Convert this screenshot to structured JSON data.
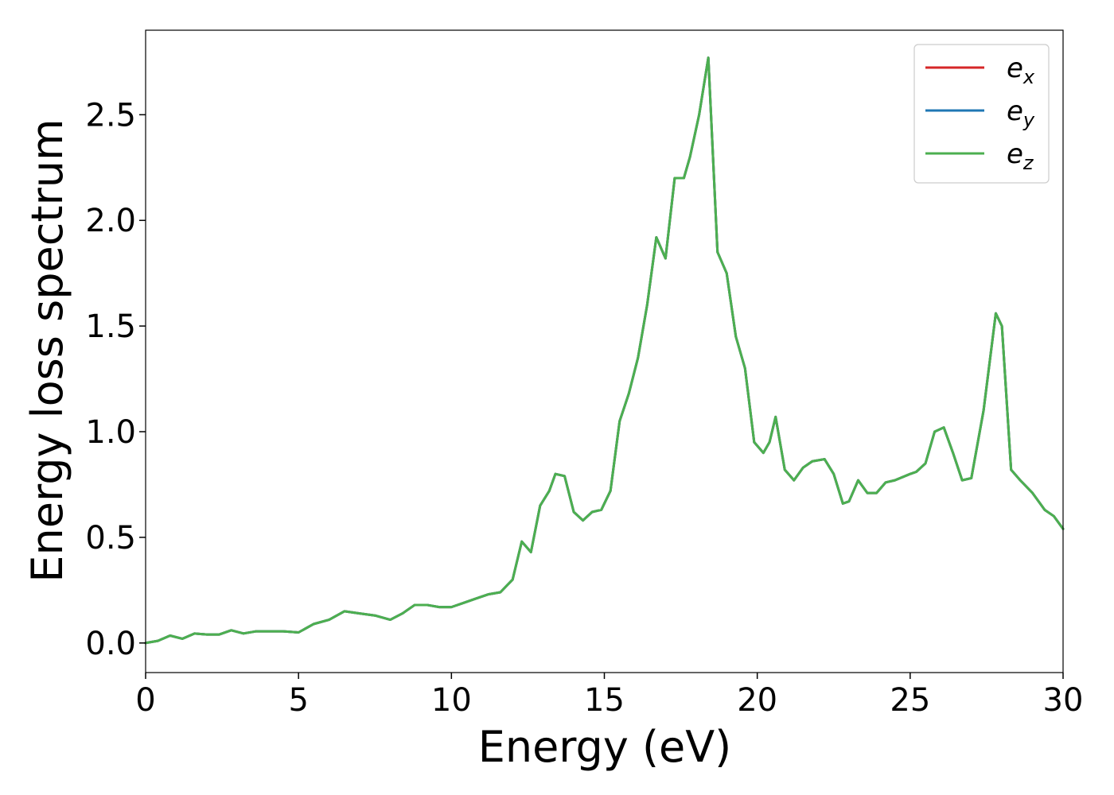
{
  "chart_data": {
    "type": "line",
    "xlabel": "Energy (eV)",
    "ylabel": "Energy loss spectrum",
    "xlim": [
      0,
      30
    ],
    "ylim": [
      -0.14,
      2.9
    ],
    "xticks": [
      0,
      5,
      10,
      15,
      20,
      25,
      30
    ],
    "xtick_labels": [
      "0",
      "5",
      "10",
      "15",
      "20",
      "25",
      "30"
    ],
    "yticks": [
      0.0,
      0.5,
      1.0,
      1.5,
      2.0,
      2.5
    ],
    "ytick_labels": [
      "0.0",
      "0.5",
      "1.0",
      "1.5",
      "2.0",
      "2.5"
    ],
    "grid": false,
    "legend_position": "top-right",
    "x": [
      0,
      0.4,
      0.8,
      1.2,
      1.6,
      2.0,
      2.4,
      2.8,
      3.2,
      3.6,
      4.0,
      4.5,
      5.0,
      5.5,
      6.0,
      6.5,
      7.0,
      7.5,
      8.0,
      8.4,
      8.8,
      9.2,
      9.6,
      10.0,
      10.4,
      10.8,
      11.2,
      11.6,
      12.0,
      12.3,
      12.6,
      12.9,
      13.2,
      13.4,
      13.7,
      14.0,
      14.3,
      14.6,
      14.9,
      15.2,
      15.5,
      15.8,
      16.1,
      16.4,
      16.7,
      17.0,
      17.3,
      17.6,
      17.8,
      18.1,
      18.4,
      18.7,
      19.0,
      19.3,
      19.6,
      19.9,
      20.2,
      20.4,
      20.6,
      20.9,
      21.2,
      21.5,
      21.8,
      22.2,
      22.5,
      22.8,
      23.0,
      23.3,
      23.6,
      23.9,
      24.2,
      24.5,
      25.0,
      25.2,
      25.5,
      25.8,
      26.1,
      26.4,
      26.7,
      27.0,
      27.4,
      27.8,
      28.0,
      28.3,
      28.6,
      29.0,
      29.4,
      29.7,
      30.0
    ],
    "series": [
      {
        "name": "e_x",
        "color": "#d62728",
        "y": [
          0.0,
          0.01,
          0.035,
          0.02,
          0.045,
          0.04,
          0.04,
          0.06,
          0.045,
          0.055,
          0.055,
          0.055,
          0.05,
          0.09,
          0.11,
          0.15,
          0.14,
          0.13,
          0.11,
          0.14,
          0.18,
          0.18,
          0.17,
          0.17,
          0.19,
          0.21,
          0.23,
          0.24,
          0.3,
          0.48,
          0.43,
          0.65,
          0.72,
          0.8,
          0.79,
          0.62,
          0.58,
          0.62,
          0.63,
          0.72,
          1.05,
          1.18,
          1.35,
          1.6,
          1.92,
          1.82,
          2.2,
          2.2,
          2.3,
          2.5,
          2.77,
          1.85,
          1.75,
          1.45,
          1.3,
          0.95,
          0.9,
          0.95,
          1.07,
          0.82,
          0.77,
          0.83,
          0.86,
          0.87,
          0.8,
          0.66,
          0.67,
          0.77,
          0.71,
          0.71,
          0.76,
          0.77,
          0.8,
          0.81,
          0.85,
          1.0,
          1.02,
          0.9,
          0.77,
          0.78,
          1.1,
          1.56,
          1.5,
          0.82,
          0.77,
          0.71,
          0.63,
          0.6,
          0.54
        ]
      },
      {
        "name": "e_y",
        "color": "#1f77b4",
        "y": [
          0.0,
          0.01,
          0.035,
          0.02,
          0.045,
          0.04,
          0.04,
          0.06,
          0.045,
          0.055,
          0.055,
          0.055,
          0.05,
          0.09,
          0.11,
          0.15,
          0.14,
          0.13,
          0.11,
          0.14,
          0.18,
          0.18,
          0.17,
          0.17,
          0.19,
          0.21,
          0.23,
          0.24,
          0.3,
          0.48,
          0.43,
          0.65,
          0.72,
          0.8,
          0.79,
          0.62,
          0.58,
          0.62,
          0.63,
          0.72,
          1.05,
          1.18,
          1.35,
          1.6,
          1.92,
          1.82,
          2.2,
          2.2,
          2.3,
          2.5,
          2.77,
          1.85,
          1.75,
          1.45,
          1.3,
          0.95,
          0.9,
          0.95,
          1.07,
          0.82,
          0.77,
          0.83,
          0.86,
          0.87,
          0.8,
          0.66,
          0.67,
          0.77,
          0.71,
          0.71,
          0.76,
          0.77,
          0.8,
          0.81,
          0.85,
          1.0,
          1.02,
          0.9,
          0.77,
          0.78,
          1.1,
          1.56,
          1.5,
          0.82,
          0.77,
          0.71,
          0.63,
          0.6,
          0.54
        ]
      },
      {
        "name": "e_z",
        "color": "#4caf50",
        "y": [
          0.0,
          0.01,
          0.035,
          0.02,
          0.045,
          0.04,
          0.04,
          0.06,
          0.045,
          0.055,
          0.055,
          0.055,
          0.05,
          0.09,
          0.11,
          0.15,
          0.14,
          0.13,
          0.11,
          0.14,
          0.18,
          0.18,
          0.17,
          0.17,
          0.19,
          0.21,
          0.23,
          0.24,
          0.3,
          0.48,
          0.43,
          0.65,
          0.72,
          0.8,
          0.79,
          0.62,
          0.58,
          0.62,
          0.63,
          0.72,
          1.05,
          1.18,
          1.35,
          1.6,
          1.92,
          1.82,
          2.2,
          2.2,
          2.3,
          2.5,
          2.77,
          1.85,
          1.75,
          1.45,
          1.3,
          0.95,
          0.9,
          0.95,
          1.07,
          0.82,
          0.77,
          0.83,
          0.86,
          0.87,
          0.8,
          0.66,
          0.67,
          0.77,
          0.71,
          0.71,
          0.76,
          0.77,
          0.8,
          0.81,
          0.85,
          1.0,
          1.02,
          0.9,
          0.77,
          0.78,
          1.1,
          1.56,
          1.5,
          0.82,
          0.77,
          0.71,
          0.63,
          0.6,
          0.54
        ]
      }
    ],
    "legend": [
      {
        "base": "e",
        "sub": "x",
        "color": "#d62728"
      },
      {
        "base": "e",
        "sub": "y",
        "color": "#1f77b4"
      },
      {
        "base": "e",
        "sub": "z",
        "color": "#4caf50"
      }
    ]
  }
}
